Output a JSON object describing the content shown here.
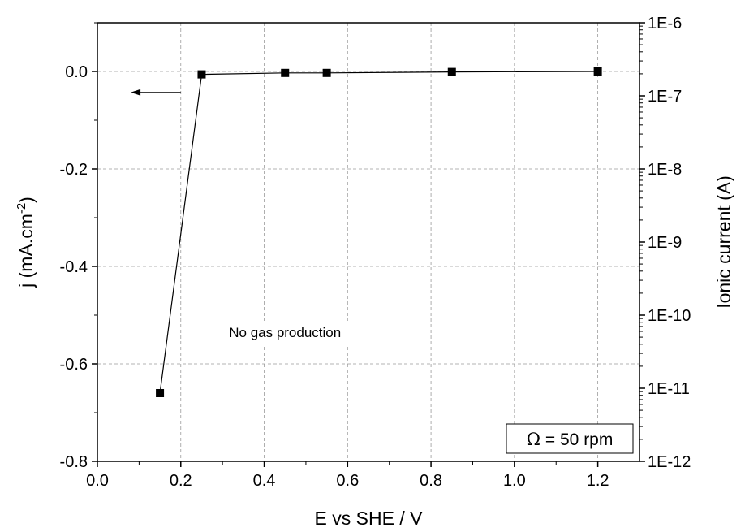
{
  "chart_data": {
    "type": "line",
    "xlabel": "E vs SHE / V",
    "ylabel": "j (mA.cm",
    "ylabel_sup": "-2",
    "ylabel_close": ")",
    "y2label": "Ionic current (A)",
    "xlim": [
      0.0,
      1.3
    ],
    "ylim": [
      -0.8,
      0.1
    ],
    "y2lim_exp": [
      -12,
      -6
    ],
    "y2_scale": "log",
    "x_ticks": [
      0.0,
      0.2,
      0.4,
      0.6,
      0.8,
      1.0,
      1.2
    ],
    "x_tick_labels": [
      "0.0",
      "0.2",
      "0.4",
      "0.6",
      "0.8",
      "1.0",
      "1.2"
    ],
    "y_ticks": [
      -0.8,
      -0.6,
      -0.4,
      -0.2,
      0.0
    ],
    "y_tick_labels": [
      "-0.8",
      "-0.6",
      "-0.4",
      "-0.2",
      "0.0"
    ],
    "y2_tick_exps": [
      -12,
      -11,
      -10,
      -9,
      -8,
      -7,
      -6
    ],
    "y2_tick_labels": [
      "1E-12",
      "1E-11",
      "1E-10",
      "1E-9",
      "1E-8",
      "1E-7",
      "1E-6"
    ],
    "grid": true,
    "series": [
      {
        "axis": "left",
        "marker": "square",
        "color": "#000000",
        "x": [
          0.15,
          0.25,
          0.45,
          0.55,
          0.85,
          1.2
        ],
        "y": [
          -0.66,
          -0.006,
          -0.003,
          -0.003,
          -0.001,
          0.0
        ]
      }
    ],
    "axis_arrow": {
      "points_to": "left",
      "x_from": 0.2,
      "x_to": 0.08,
      "y": -0.043
    },
    "annotations": [
      {
        "text": "No gas production",
        "x": 0.45,
        "y": -0.535
      }
    ],
    "legend_box": {
      "symbol": "Ω",
      "text": " = 50 rpm",
      "placement": "bottom-right"
    }
  }
}
